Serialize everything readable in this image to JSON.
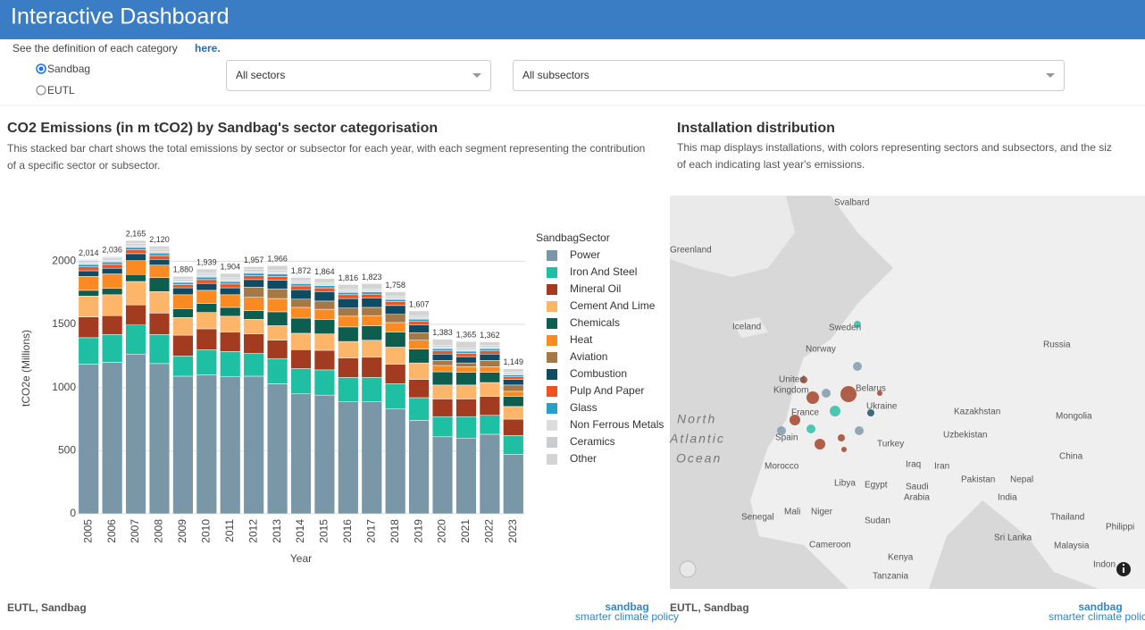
{
  "header": {
    "title": "Interactive Dashboard"
  },
  "controls": {
    "definition_text": "See the definition of each category",
    "definition_link": "here.",
    "radio_options": [
      "Sandbag",
      "EUTL"
    ],
    "sector_dropdown": "All sectors",
    "subsector_dropdown": "All subsectors"
  },
  "chart_data": {
    "type": "stacked_bar",
    "title": "CO2 Emissions (in m tCO2) by Sandbag's sector categorisation",
    "description": "This stacked bar chart shows the total emissions by sector or subsector for each year, with each segment representing the contribution of a specific sector or subsector.",
    "x_label": "Year",
    "y_label": "tCO2e (Millions)",
    "legend_title": "SandbagSector",
    "categories": [
      "2005",
      "2006",
      "2007",
      "2008",
      "2009",
      "2010",
      "2011",
      "2012",
      "2013",
      "2014",
      "2015",
      "2016",
      "2017",
      "2018",
      "2019",
      "2020",
      "2021",
      "2022",
      "2023"
    ],
    "series": [
      {
        "name": "Power",
        "color": "#7a97a8",
        "values": [
          1185,
          1200,
          1265,
          1190,
          1090,
          1100,
          1085,
          1090,
          1030,
          950,
          940,
          890,
          890,
          830,
          740,
          610,
          600,
          630,
          470
        ]
      },
      {
        "name": "Iron And Steel",
        "color": "#1fbfa3",
        "values": [
          210,
          220,
          230,
          230,
          160,
          200,
          200,
          180,
          200,
          200,
          200,
          190,
          190,
          200,
          180,
          160,
          170,
          150,
          150
        ]
      },
      {
        "name": "Mineral Oil",
        "color": "#a23b1f",
        "values": [
          165,
          150,
          160,
          170,
          165,
          165,
          155,
          155,
          145,
          150,
          155,
          155,
          160,
          155,
          145,
          140,
          140,
          150,
          130
        ]
      },
      {
        "name": "Cement And Lime",
        "color": "#fdb56a",
        "values": [
          165,
          165,
          185,
          170,
          140,
          130,
          125,
          115,
          115,
          130,
          130,
          130,
          135,
          135,
          130,
          110,
          110,
          110,
          100
        ]
      },
      {
        "name": "Chemicals",
        "color": "#0e5e50",
        "values": [
          45,
          50,
          55,
          110,
          70,
          70,
          70,
          70,
          110,
          120,
          115,
          115,
          115,
          120,
          110,
          105,
          100,
          80,
          80
        ]
      },
      {
        "name": "Heat",
        "color": "#fb8a22",
        "values": [
          110,
          115,
          110,
          100,
          110,
          105,
          100,
          105,
          105,
          85,
          80,
          85,
          80,
          75,
          70,
          50,
          45,
          45,
          40
        ]
      },
      {
        "name": "Aviation",
        "color": "#a57845",
        "values": [
          0,
          0,
          0,
          0,
          0,
          0,
          0,
          80,
          75,
          65,
          65,
          65,
          65,
          65,
          60,
          40,
          30,
          50,
          50
        ]
      },
      {
        "name": "Combustion",
        "color": "#0f4c63",
        "values": [
          45,
          45,
          55,
          45,
          55,
          55,
          55,
          60,
          70,
          75,
          75,
          75,
          75,
          70,
          60,
          50,
          50,
          50,
          45
        ]
      },
      {
        "name": "Pulp And Paper",
        "color": "#ef5323",
        "values": [
          30,
          30,
          30,
          30,
          25,
          30,
          30,
          30,
          30,
          30,
          30,
          30,
          30,
          30,
          28,
          25,
          25,
          25,
          20
        ]
      },
      {
        "name": "Glass",
        "color": "#2a9fc9",
        "values": [
          20,
          20,
          20,
          20,
          18,
          20,
          20,
          20,
          20,
          18,
          18,
          18,
          18,
          18,
          18,
          18,
          18,
          18,
          16
        ]
      },
      {
        "name": "Non Ferrous Metals",
        "color": "#dcdcdc",
        "values": [
          15,
          15,
          15,
          15,
          12,
          15,
          15,
          15,
          15,
          12,
          12,
          12,
          12,
          12,
          12,
          12,
          12,
          12,
          10
        ]
      },
      {
        "name": "Ceramics",
        "color": "#c9ccd0",
        "values": [
          15,
          15,
          15,
          15,
          12,
          14,
          14,
          14,
          14,
          12,
          12,
          12,
          12,
          12,
          12,
          12,
          12,
          12,
          10
        ]
      },
      {
        "name": "Other",
        "color": "#d4d4d4",
        "values": [
          9,
          11,
          25,
          25,
          23,
          35,
          35,
          23,
          37,
          25,
          32,
          39,
          41,
          36,
          42,
          51,
          53,
          30,
          28
        ]
      }
    ],
    "totals": {
      "values": [
        2014,
        2036,
        2165,
        2120,
        1880,
        1939,
        1904,
        1957,
        1966,
        1872,
        1864,
        1816,
        1823,
        1758,
        1607,
        1383,
        1365,
        1362,
        1149
      ],
      "value_labels": [
        "2,014",
        "2,036",
        "2,165",
        "2,120",
        "1,880",
        "1,939",
        "1,904",
        "1,957",
        "1,966",
        "1,872",
        "1,864",
        "1,816",
        "1,823",
        "1,758",
        "1,607",
        "1,383",
        "1,365",
        "1,362",
        "1,149"
      ]
    },
    "ylim": [
      0,
      2300
    ],
    "yticks": [
      0,
      500,
      1000,
      1500,
      2000
    ],
    "grid": true
  },
  "map_panel": {
    "title": "Installation distribution",
    "description_lines": [
      "This map displays installations, with colors representing sectors and subsectors, and the siz",
      "of each indicating last year's emissions."
    ],
    "labels": [
      "Svalbard",
      "Greenland",
      "Iceland",
      "Sweden",
      "Norway",
      "Russia",
      "United",
      "Kingdom",
      "Belarus",
      "France",
      "Ukraine",
      "Kazakhstan",
      "Mongolia",
      "Spain",
      "Uzbekistan",
      "Turkey",
      "China",
      "Morocco",
      "Iraq",
      "Iran",
      "Libya",
      "Egypt",
      "Saudi",
      "Arabia",
      "Pakistan",
      "Nepal",
      "India",
      "Mali",
      "Niger",
      "Senegal",
      "Sudan",
      "Thailand",
      "Philippi",
      "Sri Lanka",
      "Cameroon",
      "Malaysia",
      "Kenya",
      "Tanzania",
      "Indon"
    ],
    "ocean_lines": [
      "North",
      "Atlantic",
      "Ocean"
    ]
  },
  "footer": {
    "left_source": "EUTL, Sandbag",
    "right_source": "EUTL, Sandbag",
    "logo": "sandbag",
    "logo_tagline": "smarter climate policy"
  }
}
